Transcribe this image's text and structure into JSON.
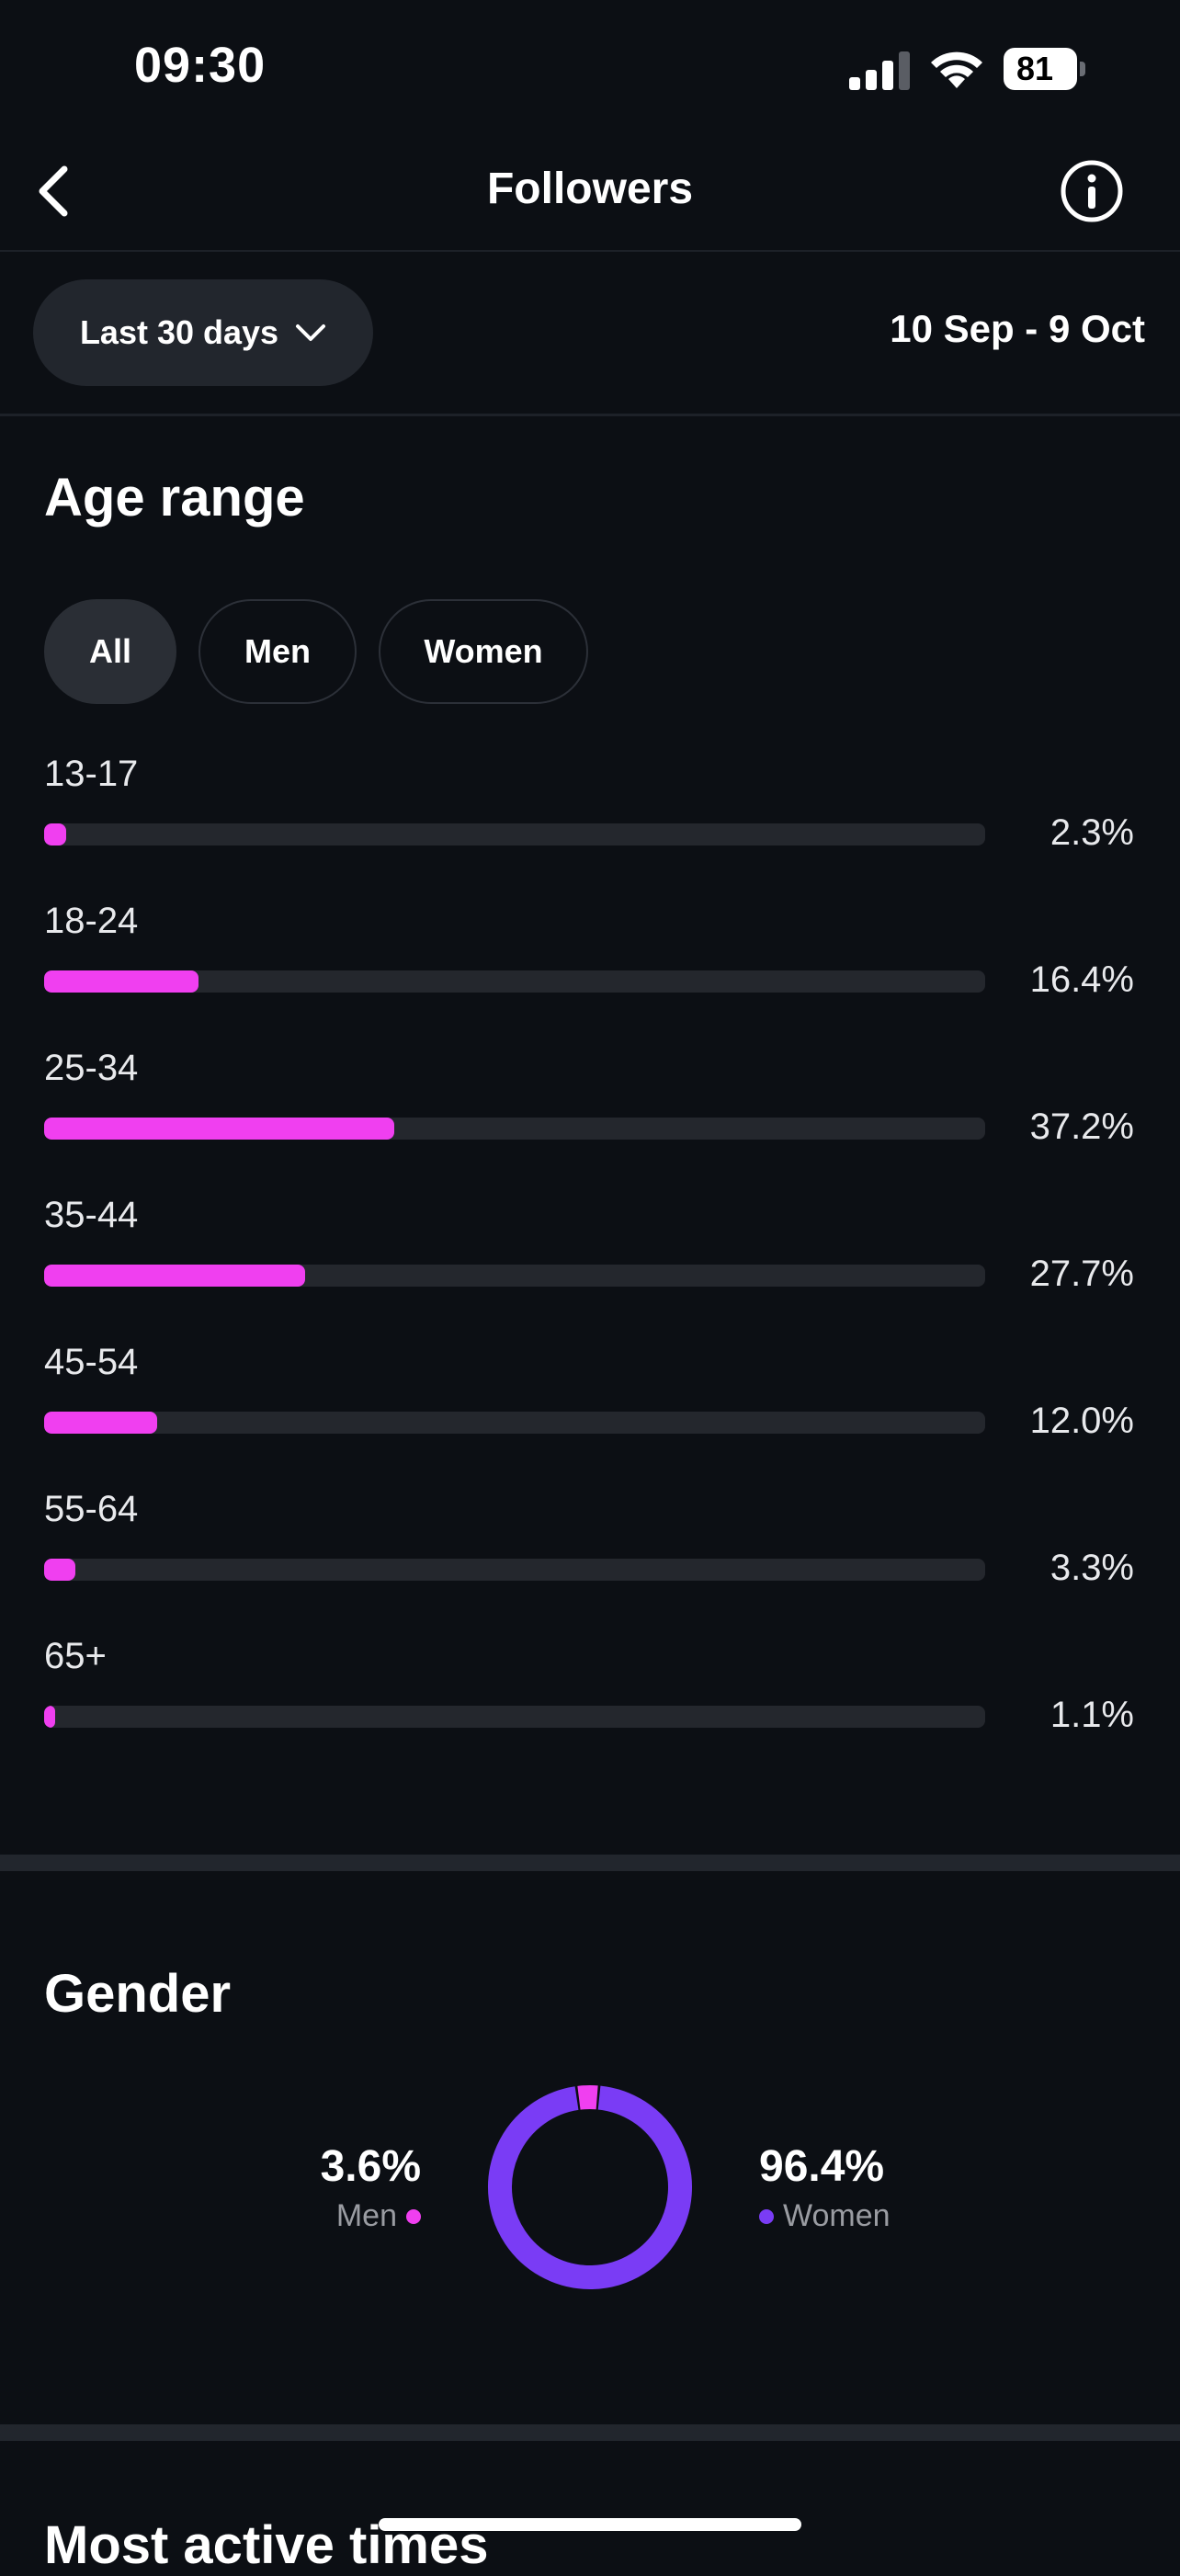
{
  "status_bar": {
    "time": "09:30",
    "battery": "81"
  },
  "header": {
    "title": "Followers"
  },
  "filters": {
    "period": "Last 30 days",
    "date_range": "10 Sep - 9 Oct"
  },
  "age_range": {
    "title": "Age range",
    "tabs": [
      {
        "label": "All",
        "active": true
      },
      {
        "label": "Men",
        "active": false
      },
      {
        "label": "Women",
        "active": false
      }
    ],
    "rows": [
      {
        "label": "13-17",
        "value": "2.3%",
        "fraction": 0.023
      },
      {
        "label": "18-24",
        "value": "16.4%",
        "fraction": 0.164
      },
      {
        "label": "25-34",
        "value": "37.2%",
        "fraction": 0.372
      },
      {
        "label": "35-44",
        "value": "27.7%",
        "fraction": 0.277
      },
      {
        "label": "45-54",
        "value": "12.0%",
        "fraction": 0.12
      },
      {
        "label": "55-64",
        "value": "3.3%",
        "fraction": 0.033
      },
      {
        "label": "65+",
        "value": "1.1%",
        "fraction": 0.011
      }
    ]
  },
  "gender": {
    "title": "Gender",
    "men": {
      "value": "3.6%",
      "label": "Men",
      "fraction": 0.036
    },
    "women": {
      "value": "96.4%",
      "label": "Women",
      "fraction": 0.964
    }
  },
  "next_section": {
    "title": "Most active times"
  },
  "colors": {
    "men": "#f03ff0",
    "women": "#7a3cf5",
    "accent_bar": "#f03ff0"
  }
}
